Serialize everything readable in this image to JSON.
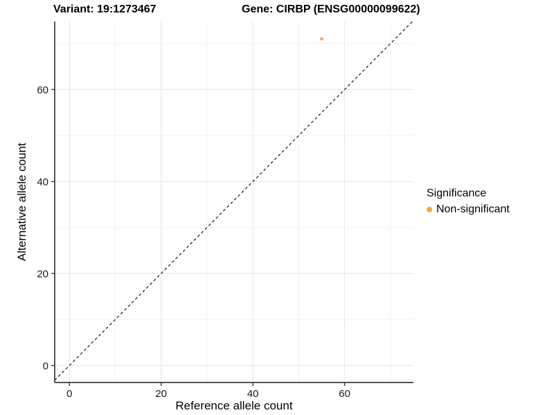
{
  "page": {
    "background": "#ffffff"
  },
  "titles": {
    "variant": "Variant: 19:1273467",
    "gene": "Gene: CIRBP (ENSG00000099622)"
  },
  "legend": {
    "title": "Significance",
    "position": "right",
    "items": [
      {
        "label": "Non-significant",
        "color": "#F9A33C",
        "marker": "circle"
      }
    ]
  },
  "chart_data": {
    "type": "scatter",
    "xlabel": "Reference allele count",
    "ylabel": "Alternative allele count",
    "xticks": [
      0,
      20,
      40,
      60
    ],
    "yticks": [
      0,
      20,
      40,
      60
    ],
    "minor_xticks": [
      10,
      30,
      50,
      70
    ],
    "minor_yticks": [
      10,
      30,
      50,
      70
    ],
    "xlim": [
      -3.2,
      75.0
    ],
    "ylim": [
      -3.7,
      74.8
    ],
    "grid": "major+minor",
    "reference_line": {
      "type": "identity",
      "style": "dashed",
      "color": "#000000"
    },
    "series": [
      {
        "name": "Non-significant",
        "color": "#F9A33C",
        "points": [
          {
            "x": 55,
            "y": 71
          }
        ]
      }
    ]
  },
  "style": {
    "grid_major": "#e4e4e4",
    "grid_minor": "#f1f1f1",
    "axis_line": "#3a3a3a",
    "tick_mark": "#3a3a3a",
    "tick_text": "#1a1a1a",
    "axis_title": "#000000"
  }
}
